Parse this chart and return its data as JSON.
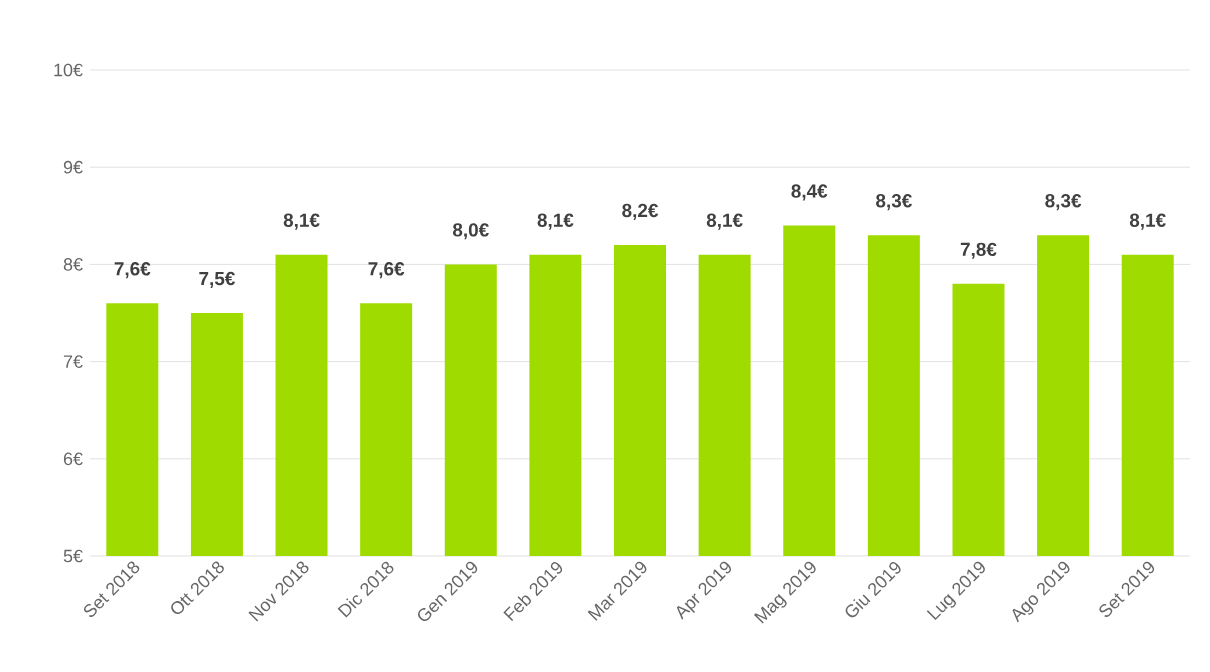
{
  "chart_data": {
    "type": "bar",
    "categories": [
      "Set 2018",
      "Ott 2018",
      "Nov 2018",
      "Dic 2018",
      "Gen 2019",
      "Feb 2019",
      "Mar 2019",
      "Apr 2019",
      "Mag 2019",
      "Giu 2019",
      "Lug 2019",
      "Ago 2019",
      "Set 2019"
    ],
    "values": [
      7.6,
      7.5,
      8.1,
      7.6,
      8.0,
      8.1,
      8.2,
      8.1,
      8.4,
      8.3,
      7.8,
      8.3,
      8.1
    ],
    "value_labels": [
      "7,6€",
      "7,5€",
      "8,1€",
      "7,6€",
      "8,0€",
      "8,1€",
      "8,2€",
      "8,1€",
      "8,4€",
      "8,3€",
      "7,8€",
      "8,3€",
      "8,1€"
    ],
    "color": "#a0db00",
    "ylim": [
      5,
      10
    ],
    "yticks": [
      {
        "value": 5,
        "label": "5€"
      },
      {
        "value": 6,
        "label": "6€"
      },
      {
        "value": 7,
        "label": "7€"
      },
      {
        "value": 8,
        "label": "8€"
      },
      {
        "value": 9,
        "label": "9€"
      },
      {
        "value": 10,
        "label": "10€"
      }
    ],
    "grid": "y"
  }
}
